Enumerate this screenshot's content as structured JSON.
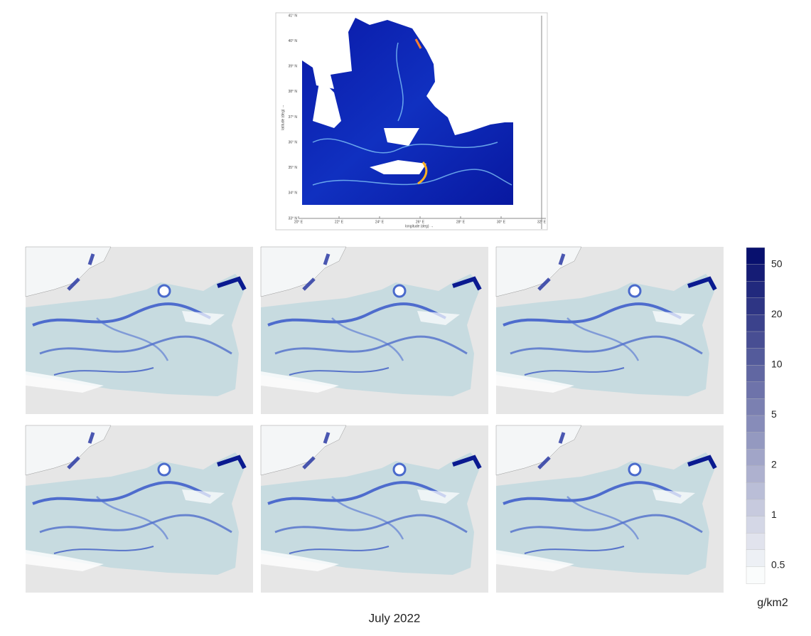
{
  "top_map": {
    "xlabel": "longitude (deg) →",
    "ylabel": "latitude (deg) →",
    "xticks": [
      "20° E",
      "22° E",
      "24° E",
      "26° E",
      "28° E",
      "30° E",
      "32° E"
    ],
    "yticks": [
      "41° N",
      "40° N",
      "39° N",
      "38° N",
      "37° N",
      "36° N",
      "35° N",
      "34° N",
      "33° N"
    ]
  },
  "colorbar": {
    "ticks": [
      50,
      20,
      10,
      5,
      2,
      1,
      0.5
    ],
    "unit": "g/km2"
  },
  "caption": "July 2022"
}
